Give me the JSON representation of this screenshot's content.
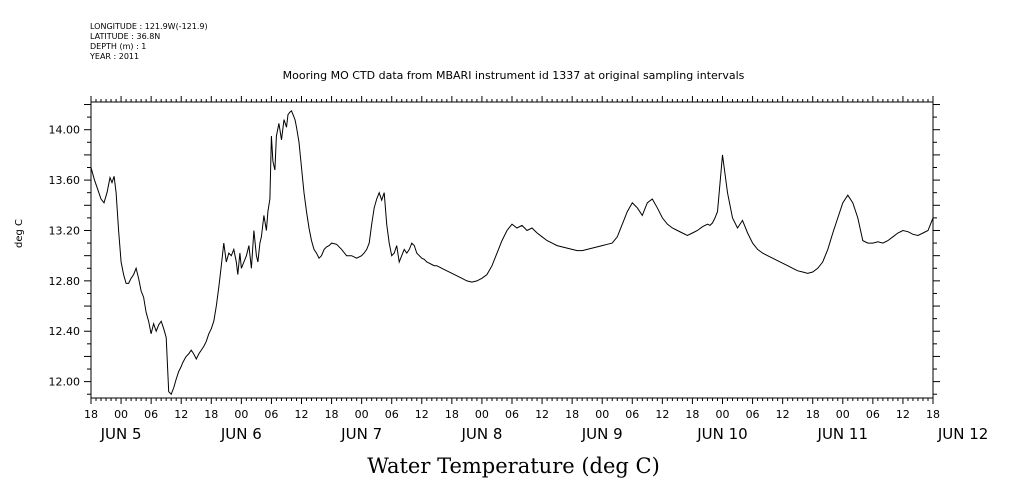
{
  "meta": {
    "longitude": "LONGITUDE : 121.9W(-121.9)",
    "latitude": "LATITUDE : 36.8N",
    "depth": "DEPTH (m) : 1",
    "year": "YEAR : 2011"
  },
  "chart_data": {
    "type": "line",
    "title": "Mooring MO CTD data from MBARI instrument id 1337 at original sampling intervals",
    "xlabel": "Water Temperature (deg C)",
    "ylabel": "deg C",
    "xlim_hours": [
      0,
      168
    ],
    "ylim": [
      11.87,
      14.22
    ],
    "y_ticks": [
      "12.00",
      "12.40",
      "12.80",
      "13.20",
      "13.60",
      "14.00"
    ],
    "x_hour_labels": [
      "18",
      "00",
      "06",
      "12",
      "18",
      "00",
      "06",
      "12",
      "18",
      "00",
      "06",
      "12",
      "18",
      "00",
      "06",
      "12",
      "18",
      "00",
      "06",
      "12",
      "18",
      "00",
      "06",
      "12",
      "18",
      "00",
      "06",
      "12",
      "18"
    ],
    "x_day_labels": [
      {
        "label": "JUN  5",
        "hour": 6
      },
      {
        "label": "JUN  6",
        "hour": 30
      },
      {
        "label": "JUN  7",
        "hour": 54
      },
      {
        "label": "JUN  8",
        "hour": 78
      },
      {
        "label": "JUN  9",
        "hour": 102
      },
      {
        "label": "JUN 10",
        "hour": 126
      },
      {
        "label": "JUN 11",
        "hour": 150
      },
      {
        "label": "JUN 12",
        "hour": 174
      }
    ],
    "grid": false,
    "series": [
      {
        "name": "",
        "x": [
          0,
          0.7,
          1.4,
          2,
          2.6,
          3.2,
          3.8,
          4.2,
          4.6,
          5,
          5.5,
          6,
          6.5,
          7,
          7.5,
          8,
          8.5,
          9,
          9.5,
          10,
          10.5,
          11,
          11.5,
          12,
          12.5,
          13,
          13.5,
          14,
          14.5,
          15,
          15.5,
          16,
          16.5,
          17,
          17.5,
          18,
          18.3,
          18.7,
          19,
          19.5,
          20,
          20.5,
          21,
          21.5,
          22,
          22.5,
          23,
          23.5,
          24,
          24.5,
          25,
          25.5,
          26,
          26.5,
          27,
          27.5,
          28,
          28.5,
          29,
          29.3,
          29.7,
          30,
          30.5,
          31,
          31.5,
          32,
          32.5,
          33,
          33.3,
          33.7,
          34,
          34.5,
          35,
          35.3,
          35.7,
          36,
          36.3,
          36.7,
          37,
          37.5,
          38,
          38.5,
          39,
          39.3,
          39.7,
          40,
          40.3,
          40.7,
          41,
          41.5,
          42,
          42.5,
          43,
          43.5,
          44,
          44.5,
          45,
          45.5,
          46,
          46.5,
          47,
          47.5,
          48,
          49,
          50,
          51,
          52,
          53,
          54,
          54.5,
          55,
          55.5,
          56,
          56.5,
          57,
          57.5,
          58,
          58.5,
          59,
          59.5,
          60,
          60.5,
          61,
          61.5,
          62,
          62.5,
          63,
          63.5,
          64,
          64.5,
          65,
          65.5,
          66,
          66.5,
          67,
          67.5,
          68,
          68.5,
          69,
          70,
          71,
          72,
          73,
          74,
          75,
          76,
          77,
          78,
          79,
          80,
          81,
          82,
          83,
          84,
          85,
          86,
          87,
          88,
          89,
          90,
          91,
          92,
          93,
          94,
          95,
          96,
          97,
          98,
          99,
          100,
          101,
          102,
          103,
          104,
          105,
          106,
          107,
          108,
          109,
          110,
          111,
          112,
          113,
          114,
          115,
          116,
          117,
          118,
          119,
          120,
          121,
          122,
          123,
          123.5,
          124,
          124.5,
          125,
          126,
          127,
          128,
          129,
          130,
          131,
          132,
          133,
          134,
          135,
          136,
          137,
          138,
          139,
          140,
          141,
          142,
          143,
          144,
          145,
          146,
          147,
          148,
          149,
          150,
          151,
          152,
          153,
          154,
          155,
          156,
          157,
          158,
          159,
          160,
          161,
          162,
          163,
          164,
          165,
          166,
          167,
          168
        ],
        "y": [
          13.7,
          13.6,
          13.52,
          13.45,
          13.42,
          13.5,
          13.62,
          13.58,
          13.63,
          13.5,
          13.2,
          12.95,
          12.85,
          12.78,
          12.78,
          12.82,
          12.85,
          12.9,
          12.82,
          12.72,
          12.67,
          12.55,
          12.48,
          12.38,
          12.46,
          12.4,
          12.45,
          12.48,
          12.42,
          12.35,
          11.92,
          11.9,
          11.95,
          12.02,
          12.08,
          12.12,
          12.15,
          12.18,
          12.2,
          12.22,
          12.25,
          12.22,
          12.18,
          12.22,
          12.25,
          12.28,
          12.32,
          12.38,
          12.42,
          12.48,
          12.6,
          12.75,
          12.92,
          13.1,
          12.95,
          13.02,
          13.0,
          13.05,
          12.95,
          12.85,
          13.02,
          12.9,
          12.95,
          13.0,
          13.08,
          12.9,
          13.2,
          13.0,
          12.95,
          13.1,
          13.15,
          13.32,
          13.2,
          13.35,
          13.45,
          13.95,
          13.75,
          13.68,
          13.95,
          14.05,
          13.92,
          14.08,
          14.02,
          14.12,
          14.14,
          14.15,
          14.12,
          14.08,
          14.02,
          13.9,
          13.7,
          13.5,
          13.35,
          13.22,
          13.12,
          13.05,
          13.02,
          12.98,
          13.0,
          13.05,
          13.07,
          13.08,
          13.1,
          13.09,
          13.05,
          13.0,
          13.0,
          12.98,
          13.0,
          13.02,
          13.05,
          13.1,
          13.25,
          13.38,
          13.45,
          13.5,
          13.44,
          13.5,
          13.25,
          13.1,
          13.0,
          13.02,
          13.08,
          12.95,
          13.0,
          13.05,
          13.02,
          13.05,
          13.1,
          13.08,
          13.02,
          13.0,
          12.98,
          12.97,
          12.95,
          12.94,
          12.93,
          12.92,
          12.92,
          12.9,
          12.88,
          12.86,
          12.84,
          12.82,
          12.8,
          12.79,
          12.8,
          12.82,
          12.85,
          12.92,
          13.02,
          13.12,
          13.2,
          13.25,
          13.22,
          13.24,
          13.2,
          13.22,
          13.18,
          13.15,
          13.12,
          13.1,
          13.08,
          13.07,
          13.06,
          13.05,
          13.04,
          13.04,
          13.05,
          13.06,
          13.07,
          13.08,
          13.09,
          13.1,
          13.15,
          13.25,
          13.35,
          13.42,
          13.38,
          13.32,
          13.42,
          13.45,
          13.38,
          13.3,
          13.25,
          13.22,
          13.2,
          13.18,
          13.16,
          13.18,
          13.2,
          13.23,
          13.25,
          13.24,
          13.26,
          13.3,
          13.35,
          13.8,
          13.5,
          13.3,
          13.22,
          13.28,
          13.18,
          13.1,
          13.05,
          13.02,
          13.0,
          12.98,
          12.96,
          12.94,
          12.92,
          12.9,
          12.88,
          12.87,
          12.86,
          12.87,
          12.9,
          12.95,
          13.05,
          13.18,
          13.3,
          13.42,
          13.48,
          13.42,
          13.3,
          13.12,
          13.1,
          13.1,
          13.11,
          13.1,
          13.12,
          13.15,
          13.18,
          13.2,
          13.19,
          13.17,
          13.16,
          13.18,
          13.2,
          13.3
        ]
      }
    ]
  }
}
